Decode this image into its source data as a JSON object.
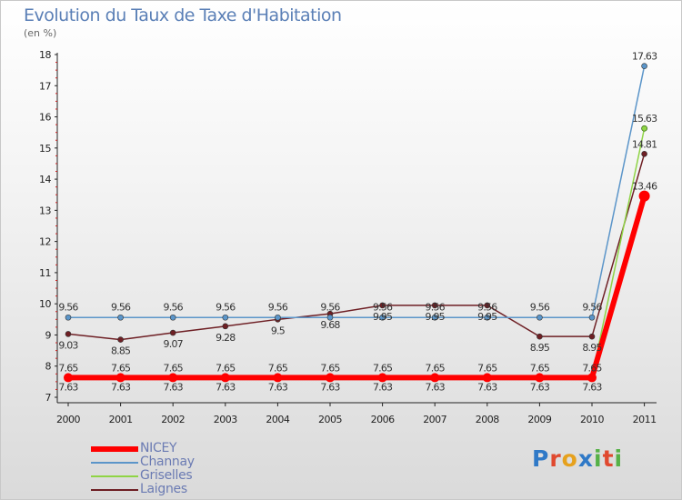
{
  "header": {
    "title": "Evolution du Taux de Taxe d'Habitation",
    "unit": "(en %)"
  },
  "logo": {
    "letters": [
      "P",
      "r",
      "o",
      "x",
      "i",
      "t",
      "i"
    ]
  },
  "chart_data": {
    "type": "line",
    "title": "Evolution du Taux de Taxe d'Habitation",
    "ylabel": "(en %)",
    "xlabel": "",
    "x": [
      "2000",
      "2001",
      "2002",
      "2003",
      "2004",
      "2005",
      "2006",
      "2007",
      "2008",
      "2009",
      "2010",
      "2011"
    ],
    "ylim": [
      7,
      18
    ],
    "yticks": [
      7,
      8,
      9,
      10,
      11,
      12,
      13,
      14,
      15,
      16,
      17,
      18
    ],
    "grid": false,
    "legend_position": "bottom-left",
    "series": [
      {
        "name": "NICEY",
        "color": "#ff0000",
        "values": [
          7.63,
          7.63,
          7.63,
          7.63,
          7.63,
          7.63,
          7.63,
          7.63,
          7.63,
          7.63,
          7.63,
          13.46
        ],
        "labels": [
          "7.63",
          "7.63",
          "7.63",
          "7.63",
          "7.63",
          "7.63",
          "7.63",
          "7.63",
          "7.63",
          "7.63",
          "7.63",
          "13.46"
        ]
      },
      {
        "name": "Channay",
        "color": "#5b95c9",
        "values": [
          9.56,
          9.56,
          9.56,
          9.56,
          9.56,
          9.56,
          9.56,
          9.56,
          9.56,
          9.56,
          9.56,
          17.63
        ],
        "labels": [
          "9.56",
          "9.56",
          "9.56",
          "9.56",
          "9.56",
          "9.56",
          "9.56",
          "9.56",
          "9.56",
          "9.56",
          "9.56",
          "17.63"
        ]
      },
      {
        "name": "Griselles",
        "color": "#8fd445",
        "values": [
          7.65,
          7.65,
          7.65,
          7.65,
          7.65,
          7.65,
          7.65,
          7.65,
          7.65,
          7.65,
          7.65,
          15.63
        ],
        "labels": [
          "7.65",
          "7.65",
          "7.65",
          "7.65",
          "7.65",
          "7.65",
          "7.65",
          "7.65",
          "7.65",
          "7.65",
          "7.65",
          "15.63"
        ]
      },
      {
        "name": "Laignes",
        "color": "#6e1f24",
        "values": [
          9.03,
          8.85,
          9.07,
          9.28,
          9.5,
          9.68,
          9.95,
          9.95,
          9.95,
          8.95,
          8.95,
          14.81
        ],
        "labels": [
          "9.03",
          "8.85",
          "9.07",
          "9.28",
          "9.5",
          "9.68",
          "9.95",
          "9.95",
          "9.95",
          "8.95",
          "8.95",
          "14.81"
        ]
      }
    ]
  }
}
